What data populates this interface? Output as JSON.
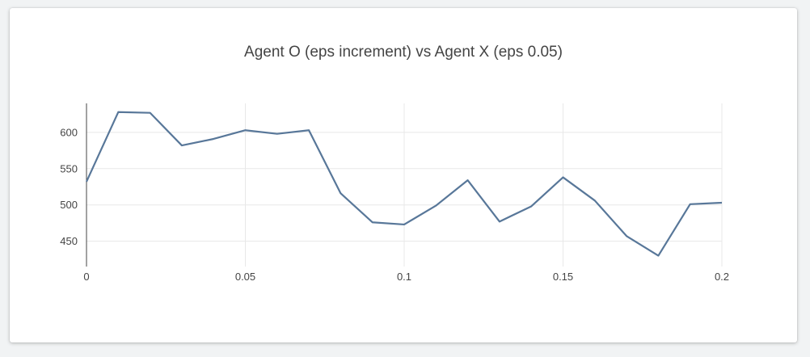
{
  "chart_data": {
    "type": "line",
    "title": "Agent O (eps increment) vs Agent X (eps 0.05)",
    "xlabel": "",
    "ylabel": "",
    "xlim": [
      0,
      0.2
    ],
    "ylim": [
      415,
      640
    ],
    "x_ticks": [
      0,
      0.05,
      0.1,
      0.15,
      0.2
    ],
    "x_tick_labels": [
      "0",
      "0.05",
      "0.1",
      "0.15",
      "0.2"
    ],
    "y_ticks": [
      450,
      500,
      550,
      600
    ],
    "y_tick_labels": [
      "450",
      "500",
      "550",
      "600"
    ],
    "grid": true,
    "legend": "none",
    "colors": {
      "line": "#587799",
      "axis": "#444444",
      "grid": "#e8e8e8"
    },
    "series": [
      {
        "x": [
          0,
          0.01,
          0.02,
          0.03,
          0.04,
          0.05,
          0.06,
          0.07,
          0.08,
          0.09,
          0.1,
          0.11,
          0.12,
          0.13,
          0.14,
          0.15,
          0.16,
          0.17,
          0.18,
          0.19,
          0.2
        ],
        "values": [
          532,
          628,
          627,
          582,
          591,
          603,
          598,
          603,
          516,
          476,
          473,
          499,
          534,
          477,
          498,
          538,
          506,
          457,
          430,
          501,
          503
        ]
      }
    ]
  }
}
